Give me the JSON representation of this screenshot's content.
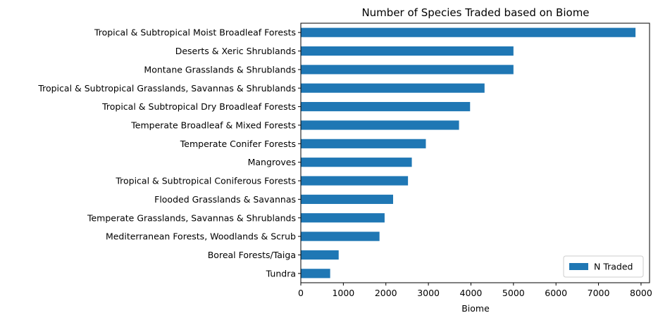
{
  "chart_data": {
    "type": "bar",
    "orientation": "horizontal",
    "title": "Number of Species Traded based on Biome",
    "xlabel": "Biome",
    "ylabel": "",
    "xlim": [
      0,
      8200
    ],
    "xticks": [
      0,
      1000,
      2000,
      3000,
      4000,
      5000,
      6000,
      7000,
      8000
    ],
    "grid": false,
    "legend_position": "bottom-right",
    "bar_color": "#1f77b4",
    "categories": [
      "Tropical & Subtropical Moist Broadleaf Forests",
      "Deserts & Xeric Shrublands",
      "Montane Grasslands & Shrublands",
      "Tropical & Subtropical Grasslands, Savannas & Shrublands",
      "Tropical & Subtropical Dry Broadleaf Forests",
      "Temperate Broadleaf & Mixed Forests",
      "Temperate Conifer Forests",
      "Mangroves",
      "Tropical & Subtropical Coniferous Forests",
      "Flooded Grasslands & Savannas",
      "Temperate Grasslands, Savannas & Shrublands",
      "Mediterranean Forests, Woodlands & Scrub",
      "Boreal Forests/Taiga",
      "Tundra"
    ],
    "series": [
      {
        "name": "N Traded",
        "values": [
          7870,
          5000,
          5000,
          4320,
          3980,
          3720,
          2940,
          2610,
          2520,
          2170,
          1970,
          1850,
          890,
          690
        ]
      }
    ]
  }
}
